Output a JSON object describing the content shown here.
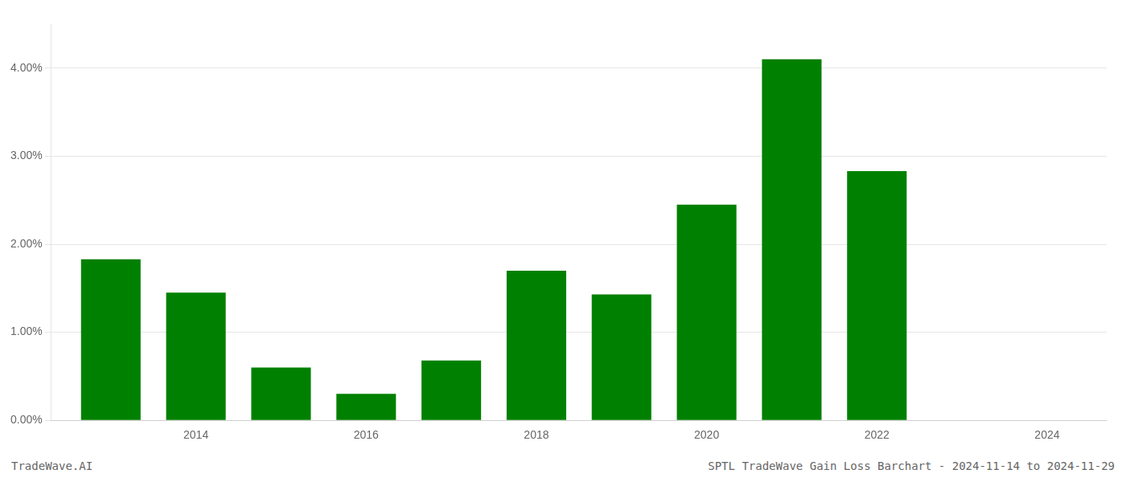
{
  "chart_data": {
    "type": "bar",
    "title": "SPTL TradeWave Gain Loss Barchart - 2024-11-14 to 2024-11-29",
    "annotations": [
      "TradeWave.AI"
    ],
    "x": [
      2013,
      2014,
      2015,
      2016,
      2017,
      2018,
      2019,
      2020,
      2021,
      2022
    ],
    "values": [
      0.0183,
      0.0145,
      0.006,
      0.003,
      0.0068,
      0.017,
      0.0143,
      0.0245,
      0.041,
      0.0283
    ],
    "color": "#008000",
    "xlim": [
      2012.3,
      2024.7
    ],
    "xticks": [
      2014,
      2016,
      2018,
      2020,
      2022,
      2024
    ],
    "ylim": [
      0,
      0.045
    ],
    "yticks": [
      {
        "value": 0.0,
        "label": "0.00%"
      },
      {
        "value": 0.01,
        "label": "1.00%"
      },
      {
        "value": 0.02,
        "label": "2.00%"
      },
      {
        "value": 0.03,
        "label": "3.00%"
      },
      {
        "value": 0.04,
        "label": "4.00%"
      }
    ],
    "grid": "y"
  }
}
